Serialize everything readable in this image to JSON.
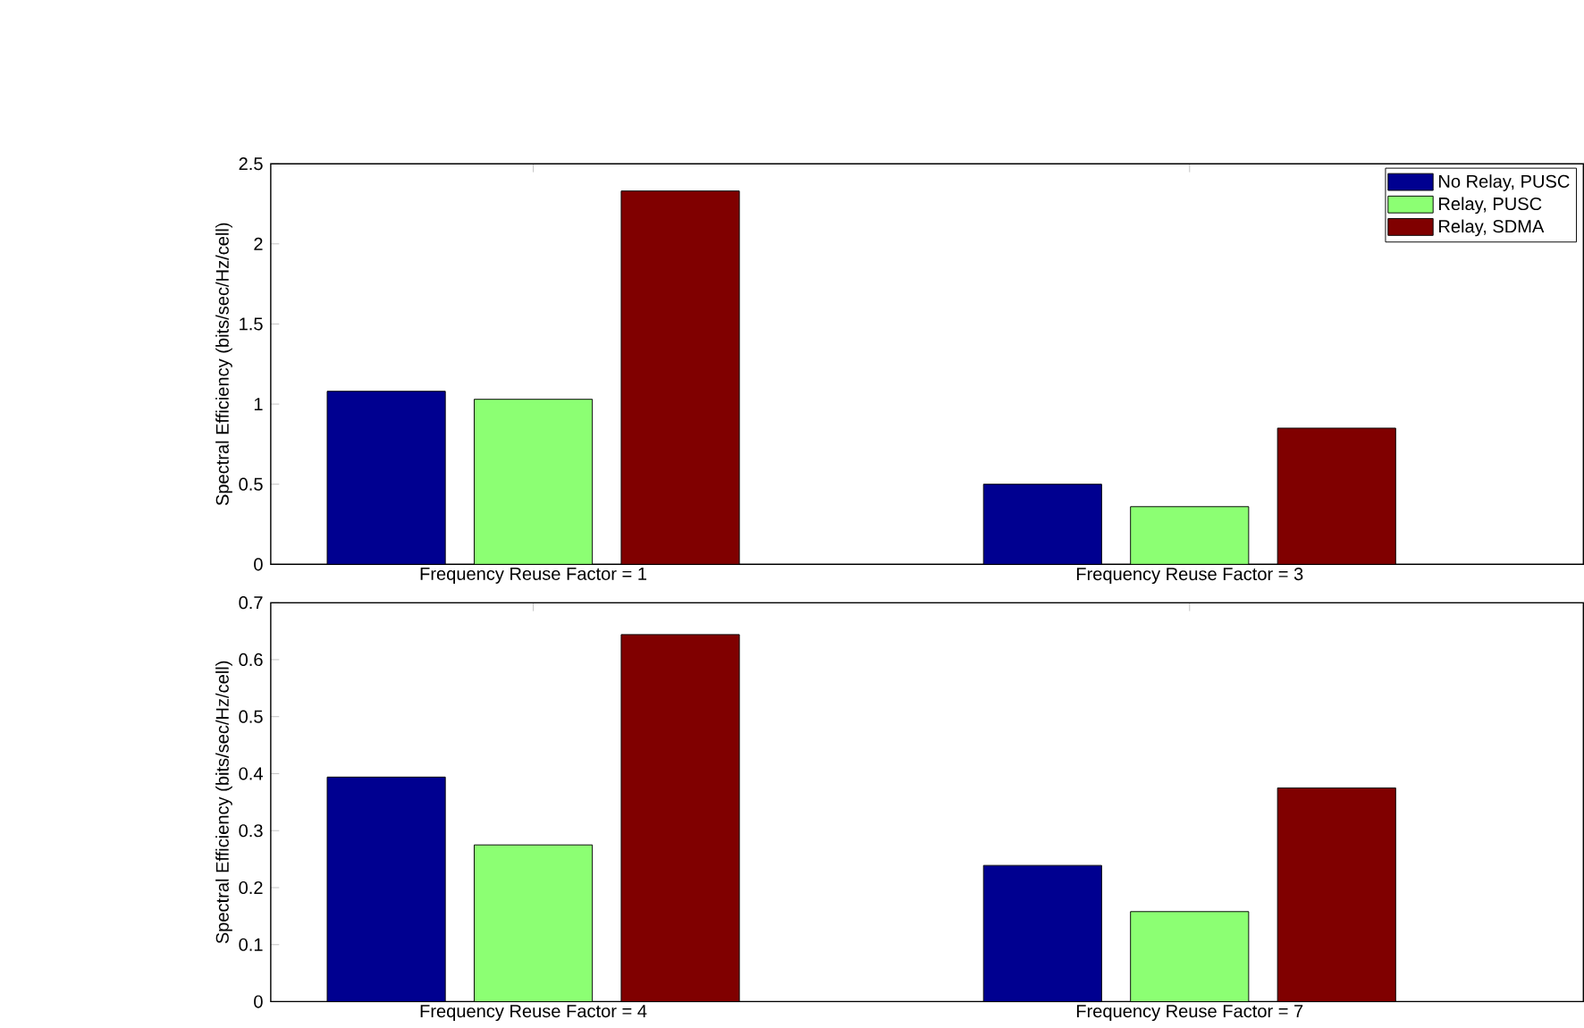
{
  "chart_data": [
    {
      "type": "bar",
      "ylabel": "Spectral Efficiency (bits/sec/Hz/cell)",
      "categories": [
        "Frequency Reuse Factor = 1",
        "Frequency Reuse Factor = 3"
      ],
      "series": [
        {
          "name": "No Relay, PUSC",
          "color": "#000090",
          "values": [
            1.08,
            0.5
          ]
        },
        {
          "name": "Relay, PUSC",
          "color": "#8cff73",
          "values": [
            1.03,
            0.36
          ]
        },
        {
          "name": "Relay, SDMA",
          "color": "#800000",
          "values": [
            2.33,
            0.85
          ]
        }
      ],
      "ylim": [
        0,
        2.5
      ],
      "yticks": [
        0,
        0.5,
        1,
        1.5,
        2,
        2.5
      ],
      "legend": "top right"
    },
    {
      "type": "bar",
      "ylabel": "Spectral Efficiency (bits/sec/Hz/cell)",
      "categories": [
        "Frequency Reuse Factor = 4",
        "Frequency Reuse Factor = 7"
      ],
      "series": [
        {
          "color": "#000090",
          "values": [
            0.394,
            0.239
          ]
        },
        {
          "color": "#8cff73",
          "values": [
            0.275,
            0.158
          ]
        },
        {
          "color": "#800000",
          "values": [
            0.644,
            0.375
          ]
        }
      ],
      "ylim": [
        0,
        0.7
      ],
      "yticks": [
        0,
        0.1,
        0.2,
        0.3,
        0.4,
        0.5,
        0.6,
        0.7
      ]
    }
  ]
}
